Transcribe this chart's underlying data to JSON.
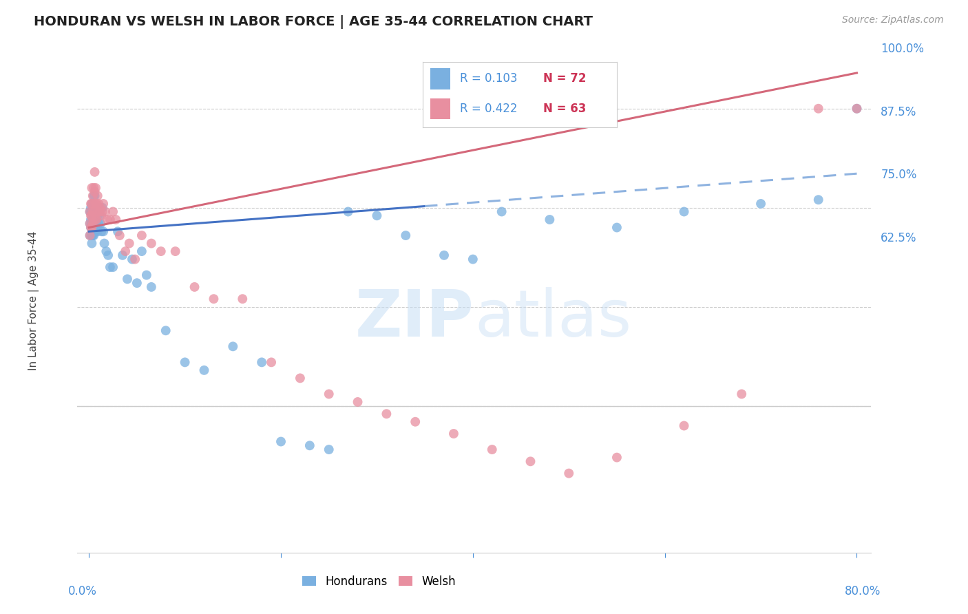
{
  "title": "HONDURAN VS WELSH IN LABOR FORCE | AGE 35-44 CORRELATION CHART",
  "source": "Source: ZipAtlas.com",
  "ylabel": "In Labor Force | Age 35-44",
  "ytick_labels": [
    "100.0%",
    "87.5%",
    "75.0%",
    "62.5%"
  ],
  "ytick_values": [
    1.0,
    0.875,
    0.75,
    0.625
  ],
  "legend_honduran_R": 0.103,
  "legend_honduran_N": 72,
  "legend_welsh_R": 0.422,
  "legend_welsh_N": 63,
  "honduran_color": "#7ab0e0",
  "welsh_color": "#e88fa0",
  "trend_honduran_solid_color": "#4472c4",
  "trend_honduran_dashed_color": "#8fb3e0",
  "trend_welsh_color": "#d4687a",
  "background_color": "#ffffff",
  "honduran_x": [
    0.001,
    0.001,
    0.001,
    0.002,
    0.002,
    0.002,
    0.002,
    0.003,
    0.003,
    0.003,
    0.003,
    0.003,
    0.004,
    0.004,
    0.004,
    0.004,
    0.004,
    0.005,
    0.005,
    0.005,
    0.005,
    0.006,
    0.006,
    0.006,
    0.006,
    0.007,
    0.007,
    0.007,
    0.008,
    0.008,
    0.009,
    0.009,
    0.01,
    0.01,
    0.011,
    0.012,
    0.013,
    0.014,
    0.015,
    0.016,
    0.018,
    0.02,
    0.022,
    0.025,
    0.03,
    0.035,
    0.04,
    0.045,
    0.05,
    0.055,
    0.06,
    0.065,
    0.08,
    0.1,
    0.12,
    0.15,
    0.18,
    0.2,
    0.23,
    0.25,
    0.27,
    0.3,
    0.33,
    0.37,
    0.4,
    0.43,
    0.48,
    0.55,
    0.62,
    0.7,
    0.76,
    0.8
  ],
  "honduran_y": [
    0.855,
    0.87,
    0.84,
    0.87,
    0.86,
    0.85,
    0.875,
    0.88,
    0.87,
    0.855,
    0.84,
    0.83,
    0.88,
    0.87,
    0.86,
    0.85,
    0.84,
    0.89,
    0.875,
    0.86,
    0.84,
    0.89,
    0.875,
    0.86,
    0.845,
    0.875,
    0.86,
    0.845,
    0.875,
    0.855,
    0.865,
    0.845,
    0.875,
    0.855,
    0.865,
    0.855,
    0.845,
    0.875,
    0.845,
    0.83,
    0.82,
    0.815,
    0.8,
    0.8,
    0.845,
    0.815,
    0.785,
    0.81,
    0.78,
    0.82,
    0.79,
    0.775,
    0.72,
    0.68,
    0.67,
    0.7,
    0.68,
    0.58,
    0.575,
    0.57,
    0.87,
    0.865,
    0.84,
    0.815,
    0.81,
    0.87,
    0.86,
    0.85,
    0.87,
    0.88,
    0.885,
    1.0
  ],
  "welsh_x": [
    0.001,
    0.001,
    0.001,
    0.002,
    0.002,
    0.002,
    0.003,
    0.003,
    0.003,
    0.003,
    0.004,
    0.004,
    0.004,
    0.005,
    0.005,
    0.005,
    0.006,
    0.006,
    0.006,
    0.007,
    0.007,
    0.007,
    0.008,
    0.008,
    0.009,
    0.009,
    0.01,
    0.011,
    0.012,
    0.013,
    0.014,
    0.015,
    0.017,
    0.019,
    0.022,
    0.025,
    0.028,
    0.032,
    0.038,
    0.042,
    0.048,
    0.055,
    0.065,
    0.075,
    0.09,
    0.11,
    0.13,
    0.16,
    0.19,
    0.22,
    0.25,
    0.28,
    0.31,
    0.34,
    0.38,
    0.42,
    0.46,
    0.5,
    0.55,
    0.62,
    0.68,
    0.76,
    0.8
  ],
  "welsh_y": [
    0.87,
    0.855,
    0.84,
    0.88,
    0.865,
    0.85,
    0.9,
    0.88,
    0.865,
    0.85,
    0.89,
    0.87,
    0.855,
    0.9,
    0.88,
    0.86,
    0.92,
    0.895,
    0.87,
    0.9,
    0.88,
    0.86,
    0.88,
    0.86,
    0.89,
    0.87,
    0.88,
    0.87,
    0.875,
    0.865,
    0.87,
    0.88,
    0.87,
    0.86,
    0.86,
    0.87,
    0.86,
    0.84,
    0.82,
    0.83,
    0.81,
    0.84,
    0.83,
    0.82,
    0.82,
    0.775,
    0.76,
    0.76,
    0.68,
    0.66,
    0.64,
    0.63,
    0.615,
    0.605,
    0.59,
    0.57,
    0.555,
    0.54,
    0.56,
    0.6,
    0.64,
    1.0,
    1.0
  ]
}
